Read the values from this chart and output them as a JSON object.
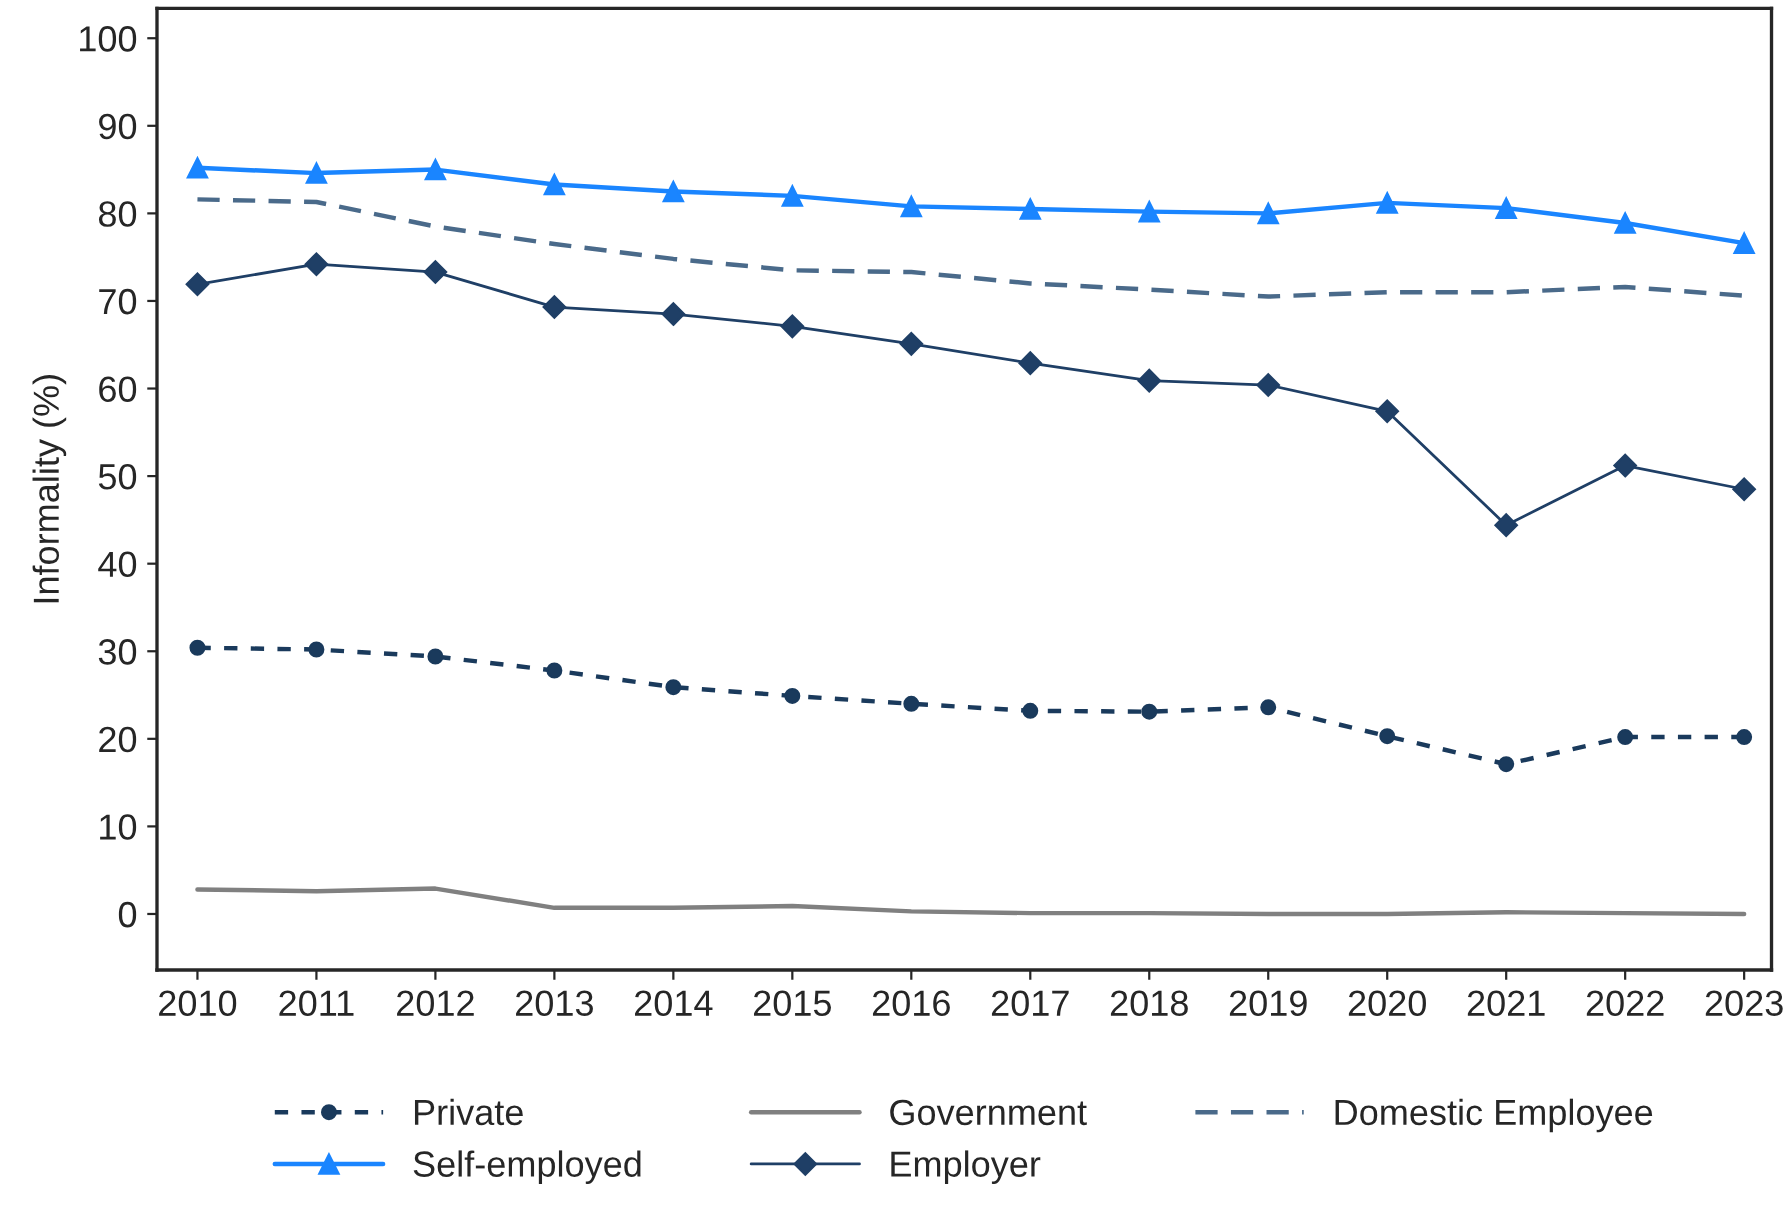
{
  "chart_data": {
    "type": "line",
    "ylabel": "Informality (%)",
    "x": [
      2010,
      2011,
      2012,
      2013,
      2014,
      2015,
      2016,
      2017,
      2018,
      2019,
      2020,
      2021,
      2022,
      2023
    ],
    "series": [
      {
        "name": "Private",
        "color": "#1a3a5c",
        "marker": "circle",
        "line_style": "dashed",
        "values": [
          30.4,
          30.2,
          29.4,
          27.8,
          25.9,
          24.9,
          24.0,
          23.2,
          23.1,
          23.6,
          20.3,
          17.1,
          20.2,
          20.2
        ]
      },
      {
        "name": "Government",
        "color": "#808080",
        "marker": "none",
        "line_style": "solid",
        "values": [
          2.8,
          2.6,
          2.9,
          0.7,
          0.7,
          0.9,
          0.3,
          0.1,
          0.1,
          0.0,
          0.0,
          0.2,
          0.1,
          0.0
        ]
      },
      {
        "name": "Domestic Employee",
        "color": "#4a6a8a",
        "marker": "none",
        "line_style": "longdash",
        "values": [
          81.6,
          81.3,
          78.5,
          76.5,
          74.8,
          73.5,
          73.3,
          72.0,
          71.3,
          70.5,
          71.0,
          71.0,
          71.6,
          70.6
        ]
      },
      {
        "name": "Self-employed",
        "color": "#1a85ff",
        "marker": "triangle",
        "line_style": "solid",
        "values": [
          85.2,
          84.6,
          85.0,
          83.3,
          82.5,
          82.0,
          80.8,
          80.5,
          80.2,
          80.0,
          81.2,
          80.6,
          78.9,
          76.6
        ]
      },
      {
        "name": "Employer",
        "color": "#1f3f66",
        "marker": "diamond",
        "line_style": "solid",
        "values": [
          71.9,
          74.2,
          73.3,
          69.3,
          68.5,
          67.1,
          65.1,
          62.9,
          60.9,
          60.4,
          57.4,
          44.4,
          51.2,
          48.5
        ]
      }
    ],
    "xlim": [
      2009.66,
      2023.23
    ],
    "ylim": [
      -6.4,
      103.4
    ],
    "xticks": [
      2010,
      2011,
      2012,
      2013,
      2014,
      2015,
      2016,
      2017,
      2018,
      2019,
      2020,
      2021,
      2022,
      2023
    ],
    "yticks": [
      0,
      10,
      20,
      30,
      40,
      50,
      60,
      70,
      80,
      90,
      100
    ],
    "grid": false,
    "legend": "bottom"
  }
}
